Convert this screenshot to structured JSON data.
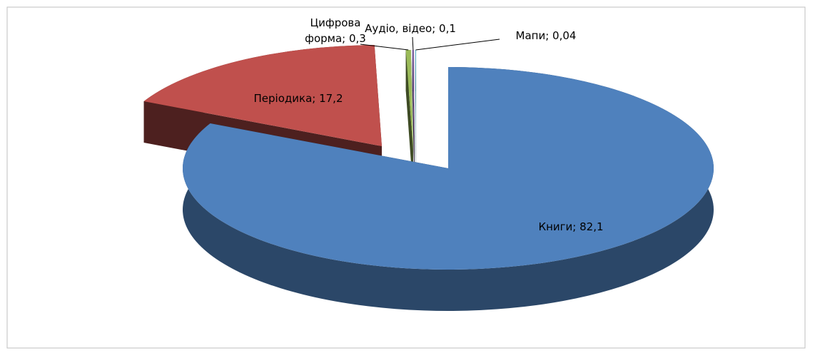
{
  "chart_data": {
    "type": "pie3d",
    "values": [
      82.1,
      17.2,
      0.3,
      0.1,
      0.04
    ],
    "value_labels": [
      "Книги; 82,1",
      "Періодика; 17,2",
      "Цифрова\nформа; 0,3",
      "Аудіо, відео; 0,1",
      "Мапи; 0,04"
    ],
    "colors": [
      "#4f81bd",
      "#c0504d",
      "#9bbb59",
      "#8064a2",
      "#4bacc6"
    ]
  }
}
